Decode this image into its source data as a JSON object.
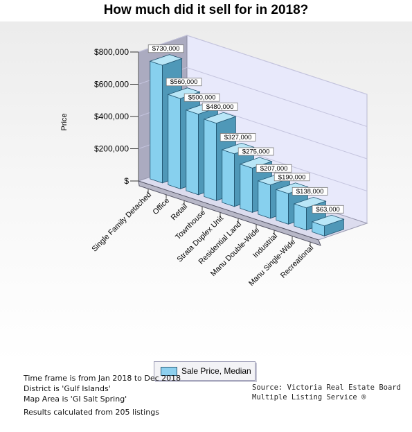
{
  "title": "How much did it sell for in 2018?",
  "chart_data": {
    "type": "bar",
    "ylabel": "Price",
    "xlabel": "",
    "ylim": [
      0,
      800000
    ],
    "yticks": [
      0,
      200000,
      400000,
      600000,
      800000
    ],
    "ytick_labels": [
      "$",
      "$200,000",
      "$400,000",
      "$600,000",
      "$800,000"
    ],
    "categories": [
      "Single Family Detached",
      "Office",
      "Retail",
      "Townhouse",
      "Strata Duplex Unit",
      "Residential Land",
      "Manu Double-Wide",
      "Industrial",
      "Manu Single-Wide",
      "Recreational"
    ],
    "series": [
      {
        "name": "Sale Price, Median",
        "values": [
          730000,
          560000,
          500000,
          480000,
          327000,
          275000,
          207000,
          190000,
          138000,
          63000
        ],
        "labels": [
          "$730,000",
          "$560,000",
          "$500,000",
          "$480,000",
          "$327,000",
          "$275,000",
          "$207,000",
          "$190,000",
          "$138,000",
          "$63,000"
        ]
      }
    ],
    "legend_position": "bottom-center",
    "grid": true,
    "colors": {
      "front": "#87d0ee",
      "side": "#4f98b8",
      "top": "#b9e6f7",
      "edge": "#215571"
    }
  },
  "legend": {
    "label": "Sale Price, Median"
  },
  "footer": {
    "timeframe": "Time frame is from Jan 2018 to Dec 2018",
    "district": "District is 'Gulf Islands'",
    "map_area": "Map Area is 'GI Salt Spring'",
    "results": "Results calculated from 205 listings",
    "source_line1": "Source: Victoria Real Estate Board",
    "source_line2": "Multiple Listing Service ®"
  }
}
